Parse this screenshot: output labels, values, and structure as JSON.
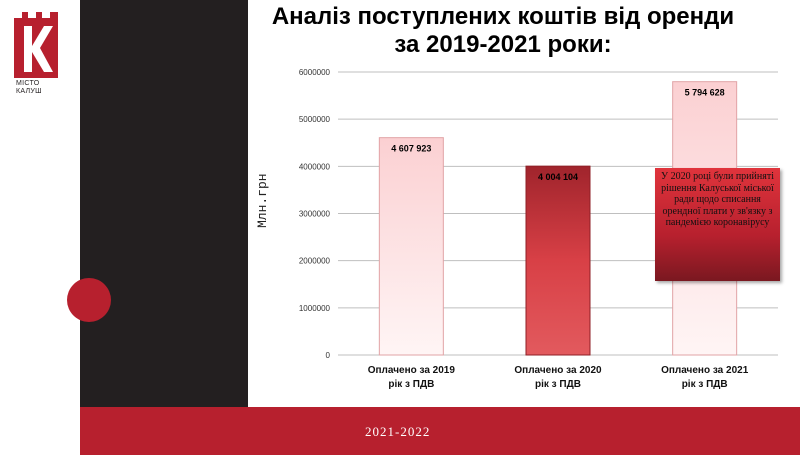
{
  "logo": {
    "letter": "К",
    "line1": "МІСТО",
    "line2": "КАЛУШ"
  },
  "title": "Аналіз поступлених коштів від оренди за 2019-2021 роки:",
  "footer": {
    "text": "2021-2022"
  },
  "annotation": "У 2020 році були прийняті рішення Калуської міської ради щодо списання орендної плати у зв'язку з пандемією коронавірусу",
  "colors": {
    "dark": "#231f20",
    "accent": "#b7202e"
  },
  "chart_data": {
    "type": "bar",
    "title": "",
    "xlabel": "",
    "ylabel": "Млн.грн",
    "ylim": [
      0,
      6000000
    ],
    "yticks": [
      "0",
      "1000000",
      "2000000",
      "3000000",
      "4000000",
      "5000000",
      "6000000"
    ],
    "grid": true,
    "categories": [
      [
        "Оплачено за 2019",
        "рік з ПДВ"
      ],
      [
        "Оплачено за 2020",
        "рік з ПДВ"
      ],
      [
        "Оплачено за 2021",
        "рік з ПДВ"
      ]
    ],
    "values": [
      4607923,
      4004104,
      5794628
    ],
    "value_labels": [
      "4 607 923",
      "4 004 104",
      "5 794 628"
    ]
  }
}
